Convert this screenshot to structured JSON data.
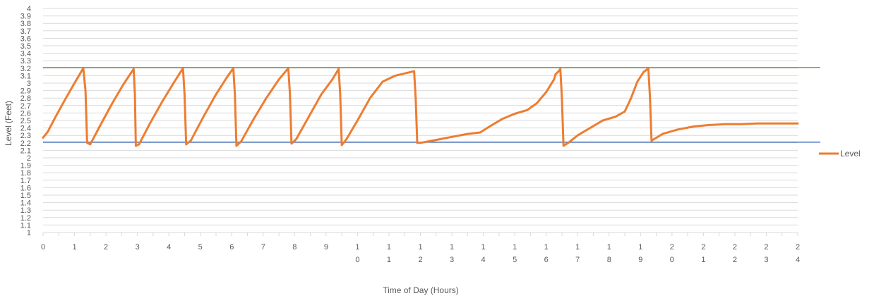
{
  "chart_data": {
    "type": "line",
    "title": "",
    "xlabel": "Time of Day (Hours)",
    "ylabel": "Level (Feet)",
    "xlim": [
      0,
      24
    ],
    "ylim": [
      1,
      4
    ],
    "grid": true,
    "legend_position": "right",
    "x_ticks": [
      "0",
      "1",
      "2",
      "3",
      "4",
      "5",
      "6",
      "7",
      "8",
      "9",
      "10",
      "11",
      "12",
      "13",
      "14",
      "15",
      "16",
      "17",
      "18",
      "19",
      "20",
      "21",
      "22",
      "23",
      "24"
    ],
    "y_ticks": [
      "1",
      "1.1",
      "1.2",
      "1.3",
      "1.4",
      "1.5",
      "1.6",
      "1.7",
      "1.8",
      "1.9",
      "2",
      "2.1",
      "2.2",
      "2.3",
      "2.4",
      "2.5",
      "2.6",
      "2.7",
      "2.8",
      "2.9",
      "3",
      "3.1",
      "3.2",
      "3.3",
      "3.4",
      "3.5",
      "3.6",
      "3.7",
      "3.8",
      "3.9",
      "4"
    ],
    "series": [
      {
        "name": "Level",
        "color": "#ED7D31",
        "points": [
          [
            0.0,
            2.27
          ],
          [
            0.15,
            2.35
          ],
          [
            0.4,
            2.55
          ],
          [
            0.7,
            2.78
          ],
          [
            1.0,
            3.0
          ],
          [
            1.28,
            3.2
          ],
          [
            1.35,
            2.9
          ],
          [
            1.4,
            2.2
          ],
          [
            1.5,
            2.18
          ],
          [
            1.8,
            2.42
          ],
          [
            2.2,
            2.73
          ],
          [
            2.55,
            2.98
          ],
          [
            2.88,
            3.19
          ],
          [
            2.92,
            2.85
          ],
          [
            2.95,
            2.16
          ],
          [
            3.05,
            2.18
          ],
          [
            3.4,
            2.46
          ],
          [
            3.8,
            2.76
          ],
          [
            4.15,
            3.0
          ],
          [
            4.45,
            3.2
          ],
          [
            4.5,
            2.85
          ],
          [
            4.55,
            2.18
          ],
          [
            4.7,
            2.23
          ],
          [
            5.1,
            2.55
          ],
          [
            5.5,
            2.85
          ],
          [
            5.85,
            3.08
          ],
          [
            6.05,
            3.2
          ],
          [
            6.1,
            2.85
          ],
          [
            6.15,
            2.16
          ],
          [
            6.3,
            2.22
          ],
          [
            6.7,
            2.52
          ],
          [
            7.1,
            2.8
          ],
          [
            7.5,
            3.05
          ],
          [
            7.8,
            3.2
          ],
          [
            7.85,
            2.85
          ],
          [
            7.9,
            2.19
          ],
          [
            8.05,
            2.25
          ],
          [
            8.45,
            2.55
          ],
          [
            8.85,
            2.85
          ],
          [
            9.2,
            3.05
          ],
          [
            9.4,
            3.19
          ],
          [
            9.45,
            2.85
          ],
          [
            9.5,
            2.17
          ],
          [
            9.65,
            2.25
          ],
          [
            10.0,
            2.5
          ],
          [
            10.4,
            2.8
          ],
          [
            10.8,
            3.02
          ],
          [
            11.2,
            3.1
          ],
          [
            11.6,
            3.14
          ],
          [
            11.8,
            3.16
          ],
          [
            11.85,
            2.8
          ],
          [
            11.9,
            2.2
          ],
          [
            12.0,
            2.2
          ],
          [
            12.5,
            2.24
          ],
          [
            13.0,
            2.28
          ],
          [
            13.5,
            2.32
          ],
          [
            13.9,
            2.34
          ],
          [
            14.2,
            2.42
          ],
          [
            14.6,
            2.52
          ],
          [
            15.0,
            2.59
          ],
          [
            15.4,
            2.64
          ],
          [
            15.7,
            2.73
          ],
          [
            16.0,
            2.88
          ],
          [
            16.25,
            3.05
          ],
          [
            16.3,
            3.12
          ],
          [
            16.4,
            3.16
          ],
          [
            16.45,
            3.19
          ],
          [
            16.5,
            2.8
          ],
          [
            16.55,
            2.16
          ],
          [
            16.7,
            2.2
          ],
          [
            17.0,
            2.3
          ],
          [
            17.4,
            2.4
          ],
          [
            17.8,
            2.5
          ],
          [
            18.2,
            2.55
          ],
          [
            18.5,
            2.62
          ],
          [
            18.7,
            2.8
          ],
          [
            18.9,
            3.02
          ],
          [
            19.1,
            3.15
          ],
          [
            19.2,
            3.18
          ],
          [
            19.25,
            3.2
          ],
          [
            19.3,
            2.8
          ],
          [
            19.35,
            2.23
          ],
          [
            19.7,
            2.32
          ],
          [
            20.2,
            2.38
          ],
          [
            20.7,
            2.42
          ],
          [
            21.2,
            2.44
          ],
          [
            21.7,
            2.45
          ],
          [
            22.2,
            2.45
          ],
          [
            22.7,
            2.46
          ],
          [
            23.2,
            2.46
          ],
          [
            24.0,
            2.46
          ]
        ]
      }
    ],
    "reference_lines": [
      {
        "y": 3.21,
        "color": "#70AD47"
      },
      {
        "y": 2.21,
        "color": "#4472C4"
      }
    ]
  }
}
